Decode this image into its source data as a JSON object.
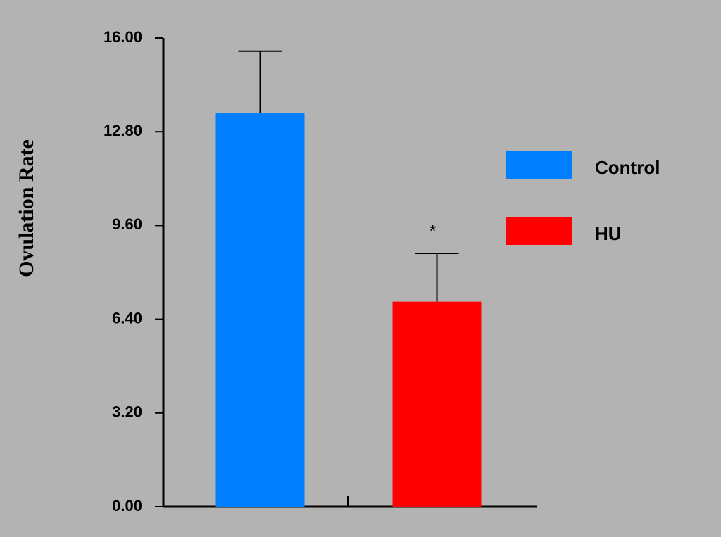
{
  "chart_data": {
    "type": "bar",
    "y_label": "Ovulation Rate",
    "categories": [
      null
    ],
    "series": [
      {
        "name": "Control",
        "color": "#0080ff",
        "values": [
          13.43
        ],
        "errors": [
          2.12
        ]
      },
      {
        "name": "HU",
        "color": "#ff0000",
        "values": [
          7.0
        ],
        "errors": [
          1.65
        ]
      }
    ],
    "annotations": [
      {
        "text": "*",
        "series": 1,
        "index": 0
      }
    ],
    "ylim": [
      0,
      16
    ],
    "yticks": [
      {
        "value": 0,
        "label": "0.00"
      },
      {
        "value": 3.2,
        "label": "3.20"
      },
      {
        "value": 6.4,
        "label": "6.40"
      },
      {
        "value": 9.6,
        "label": "9.60"
      },
      {
        "value": 12.8,
        "label": "12.80"
      },
      {
        "value": 16,
        "label": "16.00"
      }
    ],
    "grid": false,
    "legend": "right"
  }
}
